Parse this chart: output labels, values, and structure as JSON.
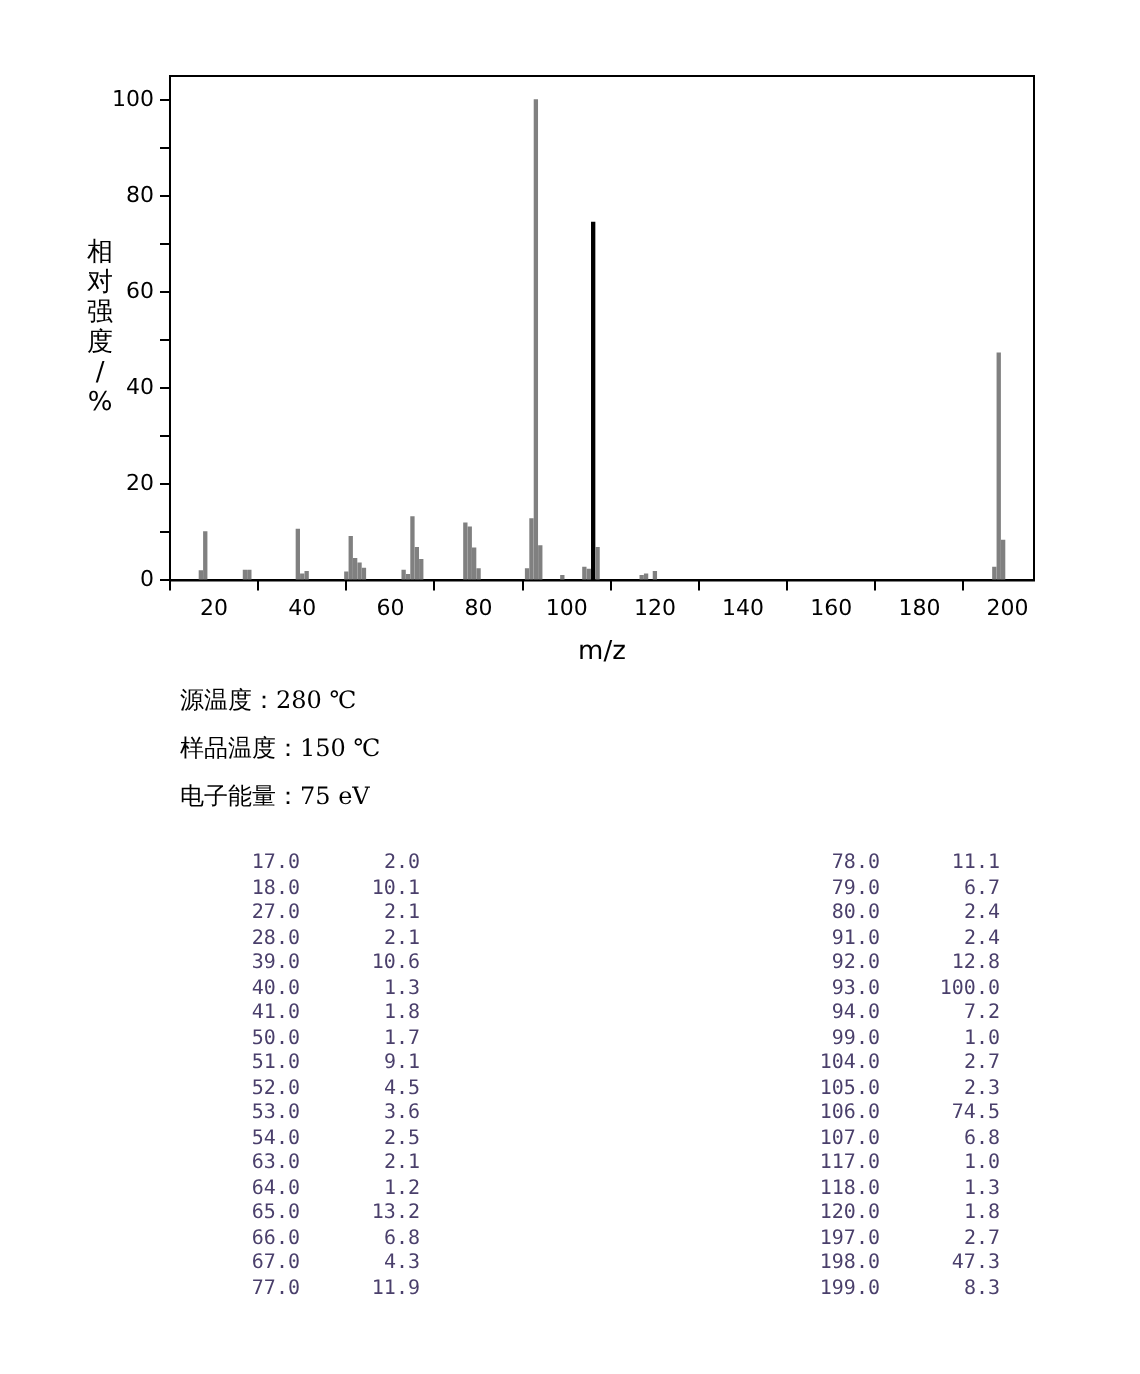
{
  "chart_data": [
    {
      "type": "bar",
      "xlabel": "m/z",
      "ylabel": "相对强度/%",
      "x": [
        17,
        18,
        27,
        28,
        39,
        40,
        41,
        50,
        51,
        52,
        53,
        54,
        63,
        64,
        65,
        66,
        67,
        77,
        78,
        79,
        80,
        91,
        92,
        93,
        94,
        99,
        104,
        105,
        106,
        107,
        117,
        118,
        120,
        197,
        198,
        199
      ],
      "values": [
        2.0,
        10.1,
        2.1,
        2.1,
        10.6,
        1.3,
        1.8,
        1.7,
        9.1,
        4.5,
        3.6,
        2.5,
        2.1,
        1.2,
        13.2,
        6.8,
        4.3,
        11.9,
        11.1,
        6.7,
        2.4,
        2.4,
        12.8,
        100.0,
        7.2,
        1.0,
        2.7,
        2.3,
        74.5,
        6.8,
        1.0,
        1.3,
        1.8,
        2.7,
        47.3,
        8.3
      ],
      "colors": [
        "#808080",
        "#808080",
        "#808080",
        "#808080",
        "#808080",
        "#808080",
        "#808080",
        "#808080",
        "#808080",
        "#808080",
        "#808080",
        "#808080",
        "#808080",
        "#808080",
        "#808080",
        "#808080",
        "#808080",
        "#808080",
        "#808080",
        "#808080",
        "#808080",
        "#808080",
        "#808080",
        "#808080",
        "#808080",
        "#808080",
        "#808080",
        "#808080",
        "#000000",
        "#808080",
        "#808080",
        "#808080",
        "#808080",
        "#808080",
        "#808080",
        "#808080"
      ],
      "xlim": [
        10,
        206
      ],
      "xticks": [
        20,
        40,
        60,
        80,
        100,
        120,
        140,
        160,
        180,
        200
      ],
      "ylim": [
        0,
        105
      ],
      "yticks": [
        0,
        {
          "value": 10,
          "label": null
        },
        20,
        {
          "value": 30,
          "label": null
        },
        40,
        {
          "value": 50,
          "label": null
        },
        60,
        {
          "value": 70,
          "label": null
        },
        80,
        {
          "value": 90,
          "label": null
        },
        100
      ],
      "grid": false,
      "legend": false,
      "annotations": [
        "源温度：280 ℃",
        "样品温度：150 ℃",
        "电子能量：75 eV"
      ]
    },
    {
      "type": "other",
      "annotations": [
        "17.0",
        "2.0",
        "78.0",
        "11.1",
        "18.0",
        "10.1",
        "79.0",
        "6.7",
        "27.0",
        "2.1",
        "80.0",
        "2.4",
        "28.0",
        "2.1",
        "91.0",
        "2.4",
        "39.0",
        "10.6",
        "92.0",
        "12.8",
        "40.0",
        "1.3",
        "93.0",
        "100.0",
        "41.0",
        "1.8",
        "94.0",
        "7.2",
        "50.0",
        "1.7",
        "99.0",
        "1.0",
        "51.0",
        "9.1",
        "104.0",
        "2.7",
        "52.0",
        "4.5",
        "105.0",
        "2.3",
        "53.0",
        "3.6",
        "106.0",
        "74.5",
        "54.0",
        "2.5",
        "107.0",
        "6.8",
        "63.0",
        "2.1",
        "117.0",
        "1.0",
        "64.0",
        "1.2",
        "118.0",
        "1.3",
        "65.0",
        "13.2",
        "120.0",
        "1.8",
        "66.0",
        "6.8",
        "197.0",
        "2.7",
        "67.0",
        "4.3",
        "198.0",
        "47.3",
        "77.0",
        "11.9",
        "199.0",
        "8.3"
      ]
    }
  ]
}
